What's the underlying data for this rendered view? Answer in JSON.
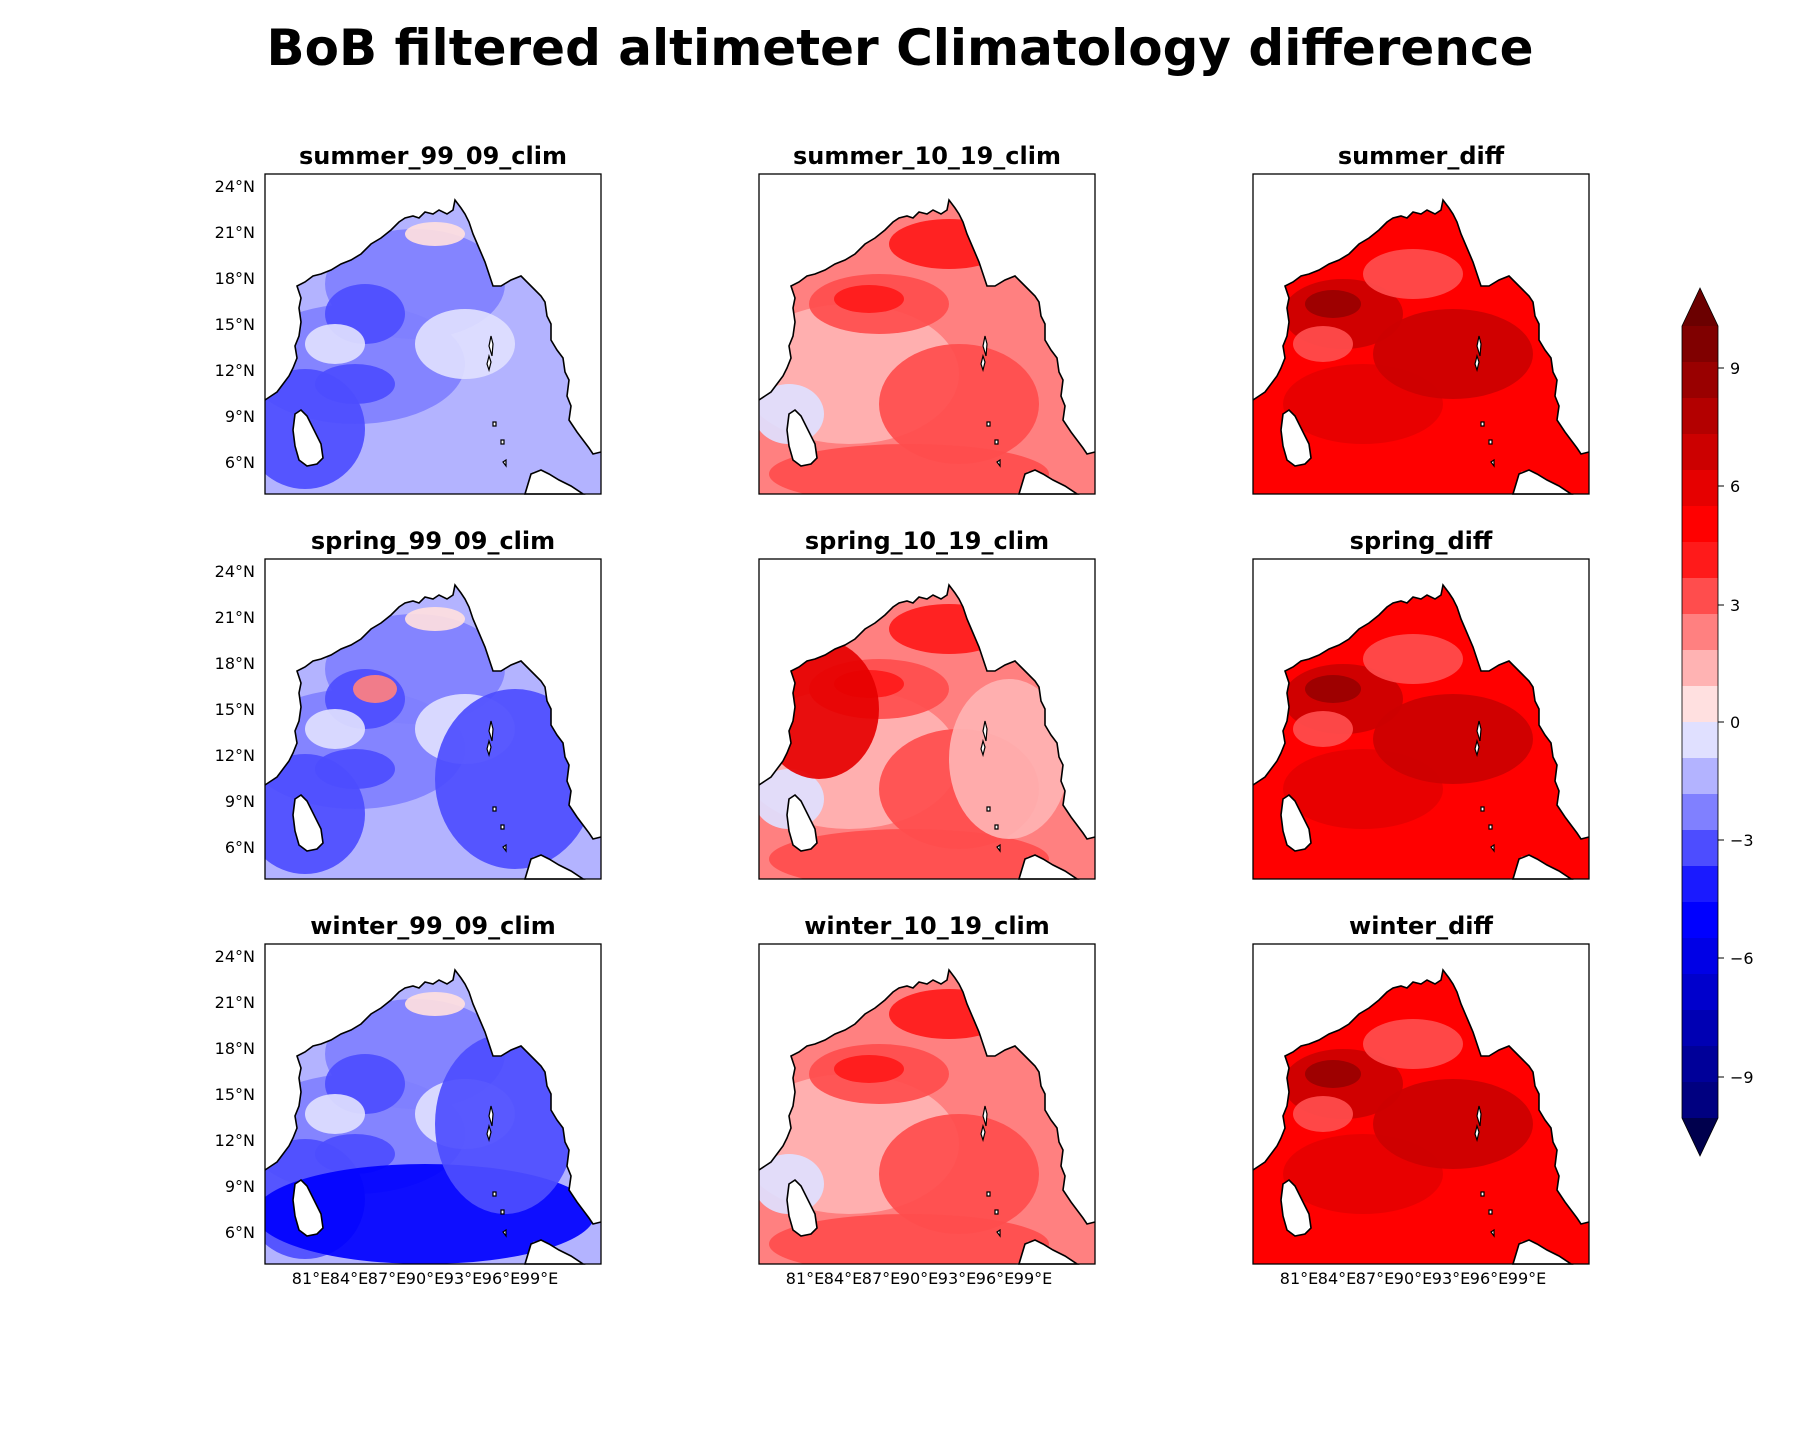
{
  "title": "BoB filtered altimeter Climatology difference",
  "panels": [
    {
      "id": "summer_99_09",
      "title": "summer_99_09_clim",
      "scheme": "neg",
      "row": 0,
      "col": 0
    },
    {
      "id": "summer_10_19",
      "title": "summer_10_19_clim",
      "scheme": "pos",
      "row": 0,
      "col": 1
    },
    {
      "id": "summer_diff",
      "title": "summer_diff",
      "scheme": "diff",
      "row": 0,
      "col": 2
    },
    {
      "id": "spring_99_09",
      "title": "spring_99_09_clim",
      "scheme": "neg",
      "row": 1,
      "col": 0
    },
    {
      "id": "spring_10_19",
      "title": "spring_10_19_clim",
      "scheme": "pos",
      "row": 1,
      "col": 1
    },
    {
      "id": "spring_diff",
      "title": "spring_diff",
      "scheme": "diff",
      "row": 1,
      "col": 2
    },
    {
      "id": "winter_99_09",
      "title": "winter_99_09_clim",
      "scheme": "neg",
      "row": 2,
      "col": 0
    },
    {
      "id": "winter_10_19",
      "title": "winter_10_19_clim",
      "scheme": "pos",
      "row": 2,
      "col": 1
    },
    {
      "id": "winter_diff",
      "title": "winter_diff",
      "scheme": "diff",
      "row": 2,
      "col": 2
    }
  ],
  "lat_ticks": [
    "24°N",
    "21°N",
    "18°N",
    "15°N",
    "12°N",
    "9°N",
    "6°N"
  ],
  "lon_ticks": [
    "81°E",
    "84°E",
    "87°E",
    "90°E",
    "93°E",
    "96°E",
    "99°E"
  ],
  "colorbar": {
    "ticks": [
      "9",
      "6",
      "3",
      "0",
      "−3",
      "−6",
      "−9"
    ],
    "colors_top_to_bottom": [
      "#800000",
      "#990000",
      "#b30000",
      "#cc0000",
      "#e60000",
      "#ff0000",
      "#ff1a1a",
      "#ff4d4d",
      "#ff8080",
      "#ffb3b3",
      "#ffe0e0",
      "#e0e0ff",
      "#b3b3ff",
      "#8080ff",
      "#4d4dff",
      "#1a1aff",
      "#0000ff",
      "#0000e6",
      "#0000cc",
      "#0000b3",
      "#000099",
      "#000080"
    ],
    "extend_max_color": "#6b0000",
    "extend_min_color": "#00004d"
  },
  "scheme_colors": {
    "neg": {
      "base": "#b3b3ff",
      "light": "#e0e0ff",
      "mid": "#8080ff",
      "dark": "#4d4dff",
      "deep": "#0000ff",
      "warm": "#ffe0e0",
      "warm2": "#ff8080"
    },
    "pos": {
      "base": "#ff8080",
      "light": "#ffb3b3",
      "mid": "#ff4d4d",
      "dark": "#ff1a1a",
      "deep": "#e60000",
      "cool": "#e0e0ff",
      "cool2": "#8080ff"
    },
    "diff": {
      "base": "#ff0000",
      "light": "#ff4d4d",
      "mid": "#e60000",
      "dark": "#cc0000",
      "deep": "#990000",
      "pale": "#ff8080"
    }
  }
}
